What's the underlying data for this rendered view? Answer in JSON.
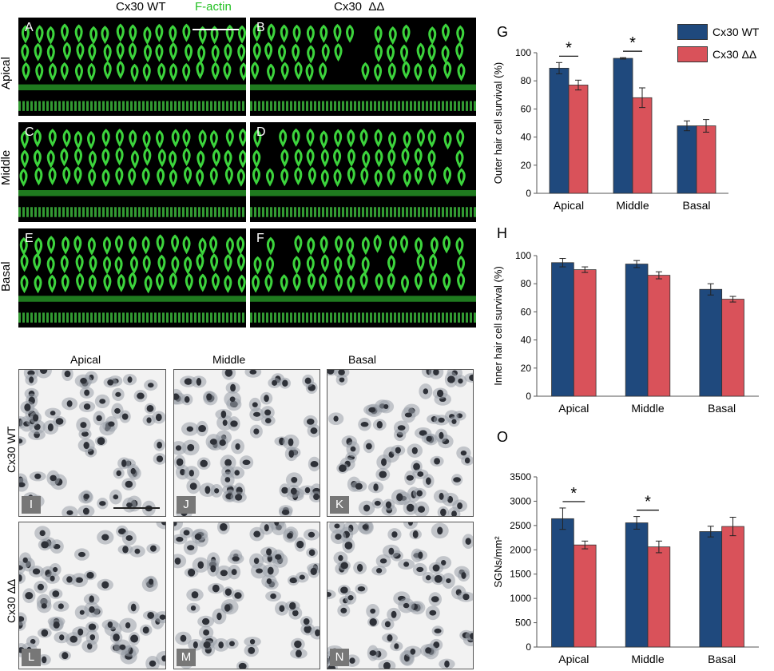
{
  "fluor_header": {
    "wt": "Cx30 WT",
    "stain": "F-actin",
    "ko": "Cx30  ΔΔ",
    "stain_color": "#22c022"
  },
  "row_labels": [
    "Apical",
    "Middle",
    "Basal"
  ],
  "fluor_panels": [
    "A",
    "B",
    "C",
    "D",
    "E",
    "F"
  ],
  "histo_header": [
    "Apical",
    "Middle",
    "Basal"
  ],
  "histo_row_labels": [
    "Cx30 WT",
    "Cx30 ΔΔ"
  ],
  "histo_panels": [
    "I",
    "J",
    "K",
    "L",
    "M",
    "N"
  ],
  "colors": {
    "wt": "#1f497d",
    "ko": "#d9525a"
  },
  "legend": {
    "wt": "Cx30 WT",
    "ko": "Cx30 ΔΔ"
  },
  "chart_data": [
    {
      "panel": "G",
      "type": "bar",
      "ylabel": "Outer hair cell survival (%)",
      "categories": [
        "Apical",
        "Middle",
        "Basal"
      ],
      "ylim": [
        0,
        100
      ],
      "yticks": [
        0,
        20,
        40,
        60,
        80,
        100
      ],
      "series": [
        {
          "name": "Cx30 WT",
          "values": [
            89,
            96,
            48
          ],
          "errors": [
            4,
            0.5,
            3.5
          ]
        },
        {
          "name": "Cx30 ΔΔ",
          "values": [
            77,
            68,
            48
          ],
          "errors": [
            3.5,
            7,
            4.5
          ]
        }
      ],
      "significance": [
        "*",
        "*",
        ""
      ]
    },
    {
      "panel": "H",
      "type": "bar",
      "ylabel": "Inner hair cell survival (%)",
      "categories": [
        "Apical",
        "Middle",
        "Basal"
      ],
      "ylim": [
        0,
        100
      ],
      "yticks": [
        0,
        20,
        40,
        60,
        80,
        100
      ],
      "series": [
        {
          "name": "Cx30 WT",
          "values": [
            95,
            94,
            76
          ],
          "errors": [
            3,
            2.5,
            4
          ]
        },
        {
          "name": "Cx30 ΔΔ",
          "values": [
            90,
            86,
            69
          ],
          "errors": [
            2,
            2.5,
            2
          ]
        }
      ],
      "significance": [
        "",
        "",
        ""
      ]
    },
    {
      "panel": "O",
      "type": "bar",
      "ylabel": "SGNs/mm²",
      "categories": [
        "Apical",
        "Middle",
        "Basal"
      ],
      "ylim": [
        0,
        3500
      ],
      "yticks": [
        0,
        500,
        1000,
        1500,
        2000,
        2500,
        3000,
        3500
      ],
      "series": [
        {
          "name": "Cx30 WT",
          "values": [
            2640,
            2555,
            2375
          ],
          "errors": [
            220,
            130,
            110
          ]
        },
        {
          "name": "Cx30 ΔΔ",
          "values": [
            2100,
            2060,
            2480
          ],
          "errors": [
            80,
            120,
            190
          ]
        }
      ],
      "significance": [
        "*",
        "*",
        ""
      ]
    }
  ]
}
